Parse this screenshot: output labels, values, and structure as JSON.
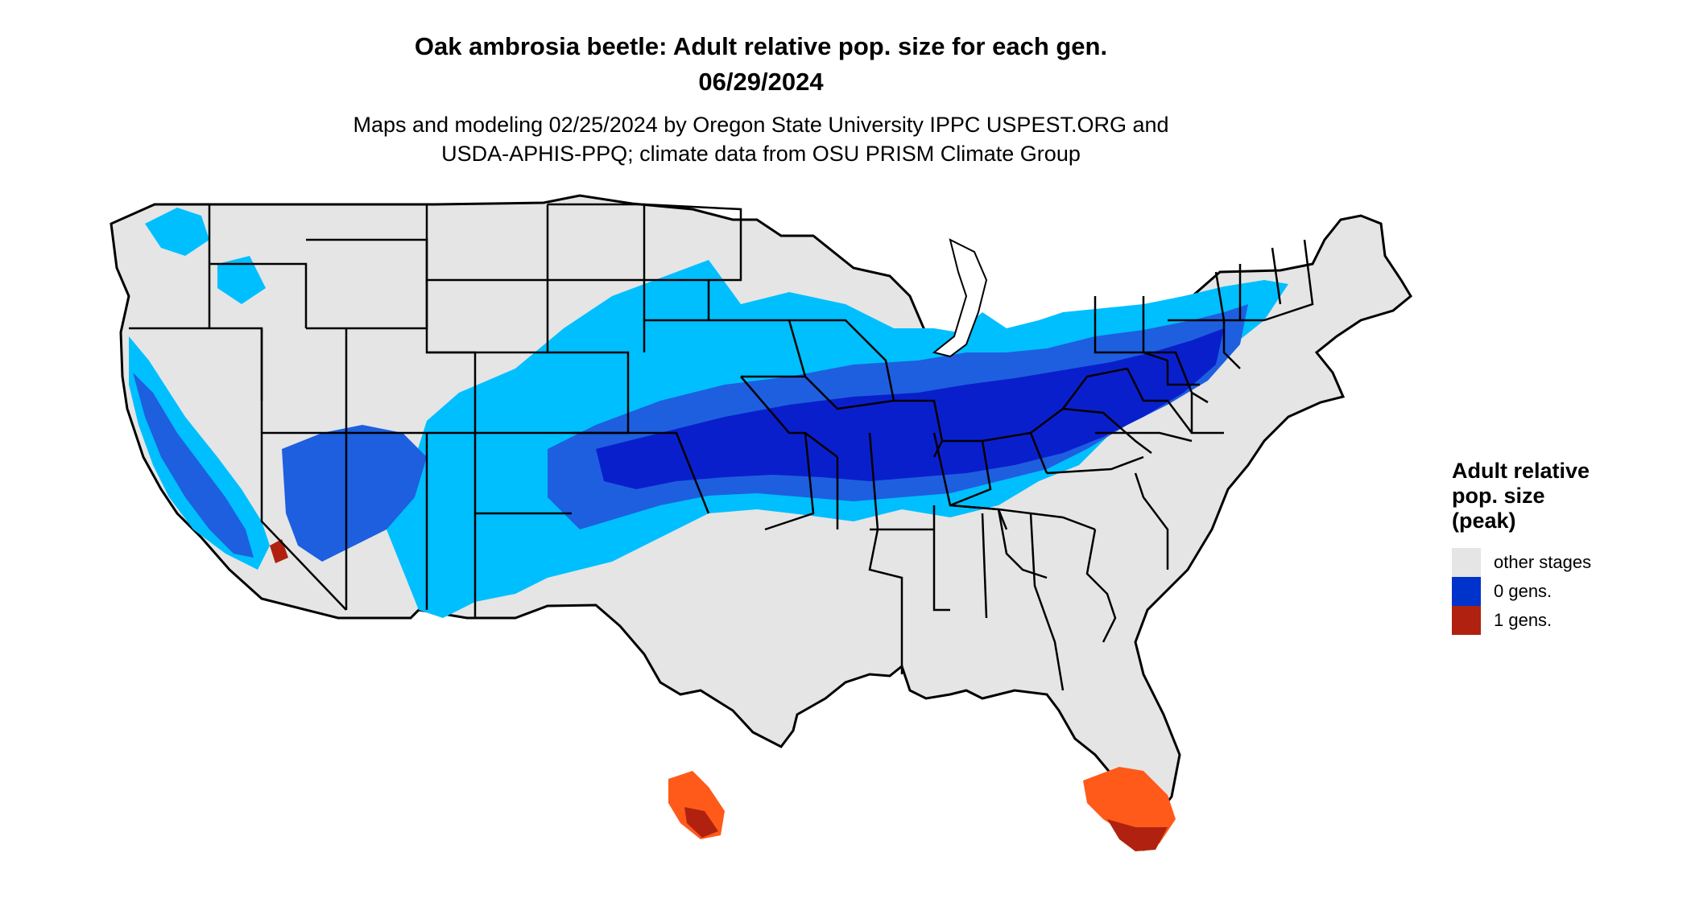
{
  "header": {
    "title_line1": "Oak ambrosia beetle: Adult relative pop. size for each gen.",
    "title_line2": "06/29/2024",
    "subtitle_line1": "Maps and modeling 02/25/2024 by Oregon State University IPPC USPEST.ORG and",
    "subtitle_line2": "USDA-APHIS-PPQ; climate data from OSU PRISM Climate Group"
  },
  "legend": {
    "title_line1": "Adult relative",
    "title_line2": "pop. size",
    "title_line3": "(peak)",
    "items": [
      {
        "label": "other stages",
        "color": "#e5e5e5"
      },
      {
        "label": "0 gens.",
        "color": "#0033cc"
      },
      {
        "label": "1 gens.",
        "color": "#b0220f"
      }
    ]
  },
  "map_colors": {
    "land": "#e5e5e5",
    "light_blue": "#00bfff",
    "mid_blue": "#1e5fe0",
    "dark_blue": "#0a1fcc",
    "orange": "#ff5a1a",
    "dark_red": "#b0220f",
    "border": "#000000"
  }
}
